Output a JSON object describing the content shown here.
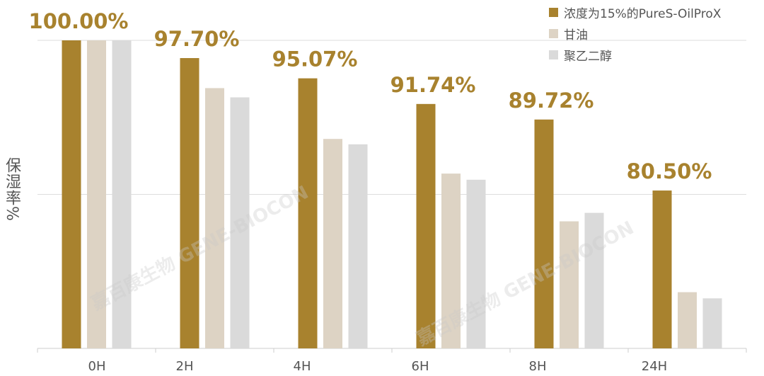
{
  "chart_data": {
    "type": "bar",
    "categories": [
      "0H",
      "2H",
      "4H",
      "6H",
      "8H",
      "24H"
    ],
    "ylabel": "保湿率%",
    "ylim": [
      60,
      100
    ],
    "grid": true,
    "legend_position": "top-right",
    "series": [
      {
        "name": "浓度为15%的PureS-OilProX",
        "color": "#A8822E",
        "values": [
          100.0,
          97.7,
          95.07,
          91.74,
          89.72,
          80.5
        ],
        "labels": [
          "100.00%",
          "97.70%",
          "95.07%",
          "91.74%",
          "89.72%",
          "80.50%"
        ]
      },
      {
        "name": "甘油",
        "color": "#DDD3C4",
        "values": [
          100,
          93.8,
          87.2,
          82.7,
          76.5,
          67.3
        ]
      },
      {
        "name": "聚乙二醇",
        "color": "#DADADA",
        "values": [
          100,
          92.6,
          86.5,
          81.9,
          77.6,
          66.5
        ]
      }
    ]
  },
  "watermark": "嘉百康生物 GENE-BIOCON"
}
